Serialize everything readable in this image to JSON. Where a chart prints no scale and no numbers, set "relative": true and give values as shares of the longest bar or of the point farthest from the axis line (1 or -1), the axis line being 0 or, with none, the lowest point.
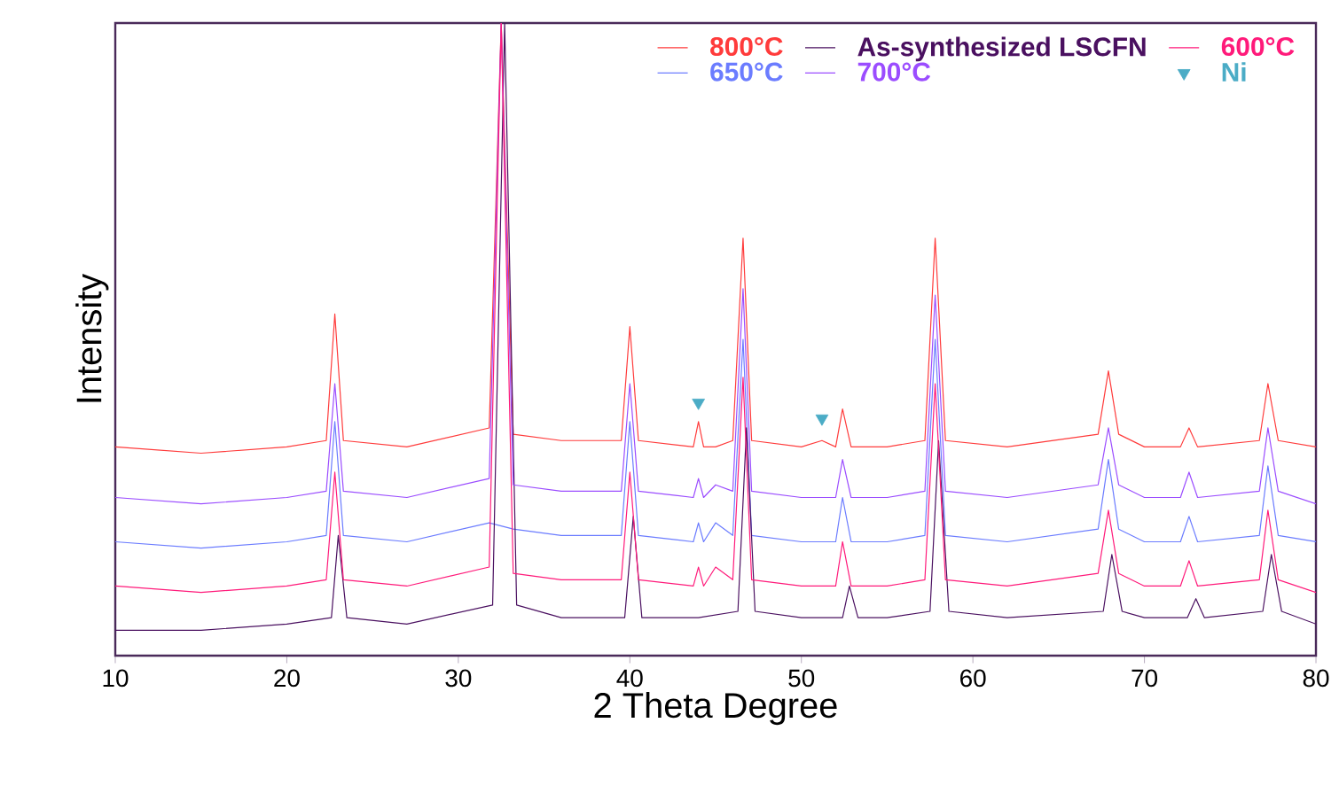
{
  "chart_data": {
    "type": "line",
    "relative": true,
    "xlabel": "2 Theta Degree",
    "ylabel": "Intensity",
    "xlim": [
      10,
      80
    ],
    "xticks": [
      10,
      20,
      30,
      40,
      50,
      60,
      70,
      80
    ],
    "tick_labels": "x",
    "legend": "top right",
    "marker": "none",
    "line_style": "solid",
    "x": [
      10,
      15,
      20,
      22.3,
      22.8,
      23.3,
      27,
      31.8,
      32.5,
      33.2,
      36,
      39.5,
      40,
      40.5,
      43.7,
      44,
      44.3,
      45,
      46,
      46.6,
      47.1,
      50,
      51.2,
      52,
      52.4,
      52.9,
      55,
      57.2,
      57.8,
      58.4,
      62,
      67.3,
      67.9,
      68.5,
      70,
      72.1,
      72.6,
      73.1,
      76.7,
      77.2,
      77.8,
      80
    ],
    "series": [
      {
        "name": "800°C",
        "color": "#ff3b3b",
        "values": [
          0.33,
          0.32,
          0.33,
          0.34,
          0.54,
          0.34,
          0.33,
          0.36,
          1.0,
          0.35,
          0.34,
          0.34,
          0.52,
          0.34,
          0.33,
          0.37,
          0.33,
          0.33,
          0.34,
          0.66,
          0.34,
          0.33,
          0.34,
          0.33,
          0.39,
          0.33,
          0.33,
          0.34,
          0.66,
          0.34,
          0.33,
          0.35,
          0.45,
          0.35,
          0.33,
          0.33,
          0.36,
          0.33,
          0.34,
          0.43,
          0.34,
          0.33
        ]
      },
      {
        "name": "650°C",
        "color": "#6b7cff",
        "values": [
          0.18,
          0.17,
          0.18,
          0.19,
          0.37,
          0.19,
          0.18,
          0.21,
          null,
          0.2,
          0.19,
          0.19,
          0.37,
          0.19,
          0.18,
          0.21,
          0.18,
          0.21,
          0.19,
          0.5,
          0.19,
          0.18,
          0.18,
          0.18,
          0.25,
          0.18,
          0.18,
          0.19,
          0.5,
          0.19,
          0.18,
          0.2,
          0.31,
          0.2,
          0.18,
          0.18,
          0.22,
          0.18,
          0.19,
          0.3,
          0.19,
          0.18
        ]
      },
      {
        "name": "As-synthesized LSCFN",
        "color": "#4a1060",
        "x": [
          10,
          15,
          20,
          22.6,
          23.0,
          23.5,
          27,
          32.0,
          32.7,
          33.4,
          36,
          39.7,
          40.2,
          40.7,
          44,
          46.3,
          46.8,
          47.3,
          50,
          52.4,
          52.8,
          53.3,
          55,
          57.5,
          58.0,
          58.6,
          62,
          67.6,
          68.1,
          68.7,
          70,
          72.5,
          73.0,
          73.5,
          76.9,
          77.4,
          78.0,
          80
        ],
        "values": [
          0.04,
          0.04,
          0.05,
          0.06,
          0.19,
          0.06,
          0.05,
          0.08,
          1.0,
          0.08,
          0.06,
          0.06,
          0.22,
          0.06,
          0.06,
          0.07,
          0.36,
          0.07,
          0.06,
          0.06,
          0.11,
          0.06,
          0.06,
          0.07,
          0.34,
          0.07,
          0.06,
          0.07,
          0.16,
          0.07,
          0.06,
          0.06,
          0.09,
          0.06,
          0.07,
          0.16,
          0.07,
          0.05
        ]
      },
      {
        "name": "700°C",
        "color": "#9b4dff",
        "values": [
          0.25,
          0.24,
          0.25,
          0.26,
          0.43,
          0.26,
          0.25,
          0.28,
          1.0,
          0.27,
          0.26,
          0.26,
          0.43,
          0.26,
          0.25,
          0.28,
          0.25,
          0.27,
          0.26,
          0.58,
          0.26,
          0.25,
          0.25,
          0.25,
          0.31,
          0.25,
          0.25,
          0.26,
          0.57,
          0.26,
          0.25,
          0.27,
          0.36,
          0.27,
          0.25,
          0.25,
          0.29,
          0.25,
          0.26,
          0.36,
          0.26,
          0.24
        ]
      },
      {
        "name": "600°C",
        "color": "#ff1a7a",
        "values": [
          0.11,
          0.1,
          0.11,
          0.12,
          0.29,
          0.12,
          0.11,
          0.14,
          1.0,
          0.13,
          0.12,
          0.12,
          0.29,
          0.12,
          0.11,
          0.14,
          0.11,
          0.14,
          0.12,
          0.44,
          0.12,
          0.11,
          0.11,
          0.11,
          0.18,
          0.11,
          0.11,
          0.12,
          0.43,
          0.12,
          0.11,
          0.13,
          0.23,
          0.13,
          0.11,
          0.11,
          0.15,
          0.11,
          0.12,
          0.23,
          0.12,
          0.1
        ]
      },
      {
        "name": "Ni",
        "type": "scatter",
        "marker": "triangle",
        "color": "#4bacc6",
        "x": [
          44.0,
          51.2
        ],
        "values": [
          0.4,
          0.375
        ]
      }
    ]
  }
}
